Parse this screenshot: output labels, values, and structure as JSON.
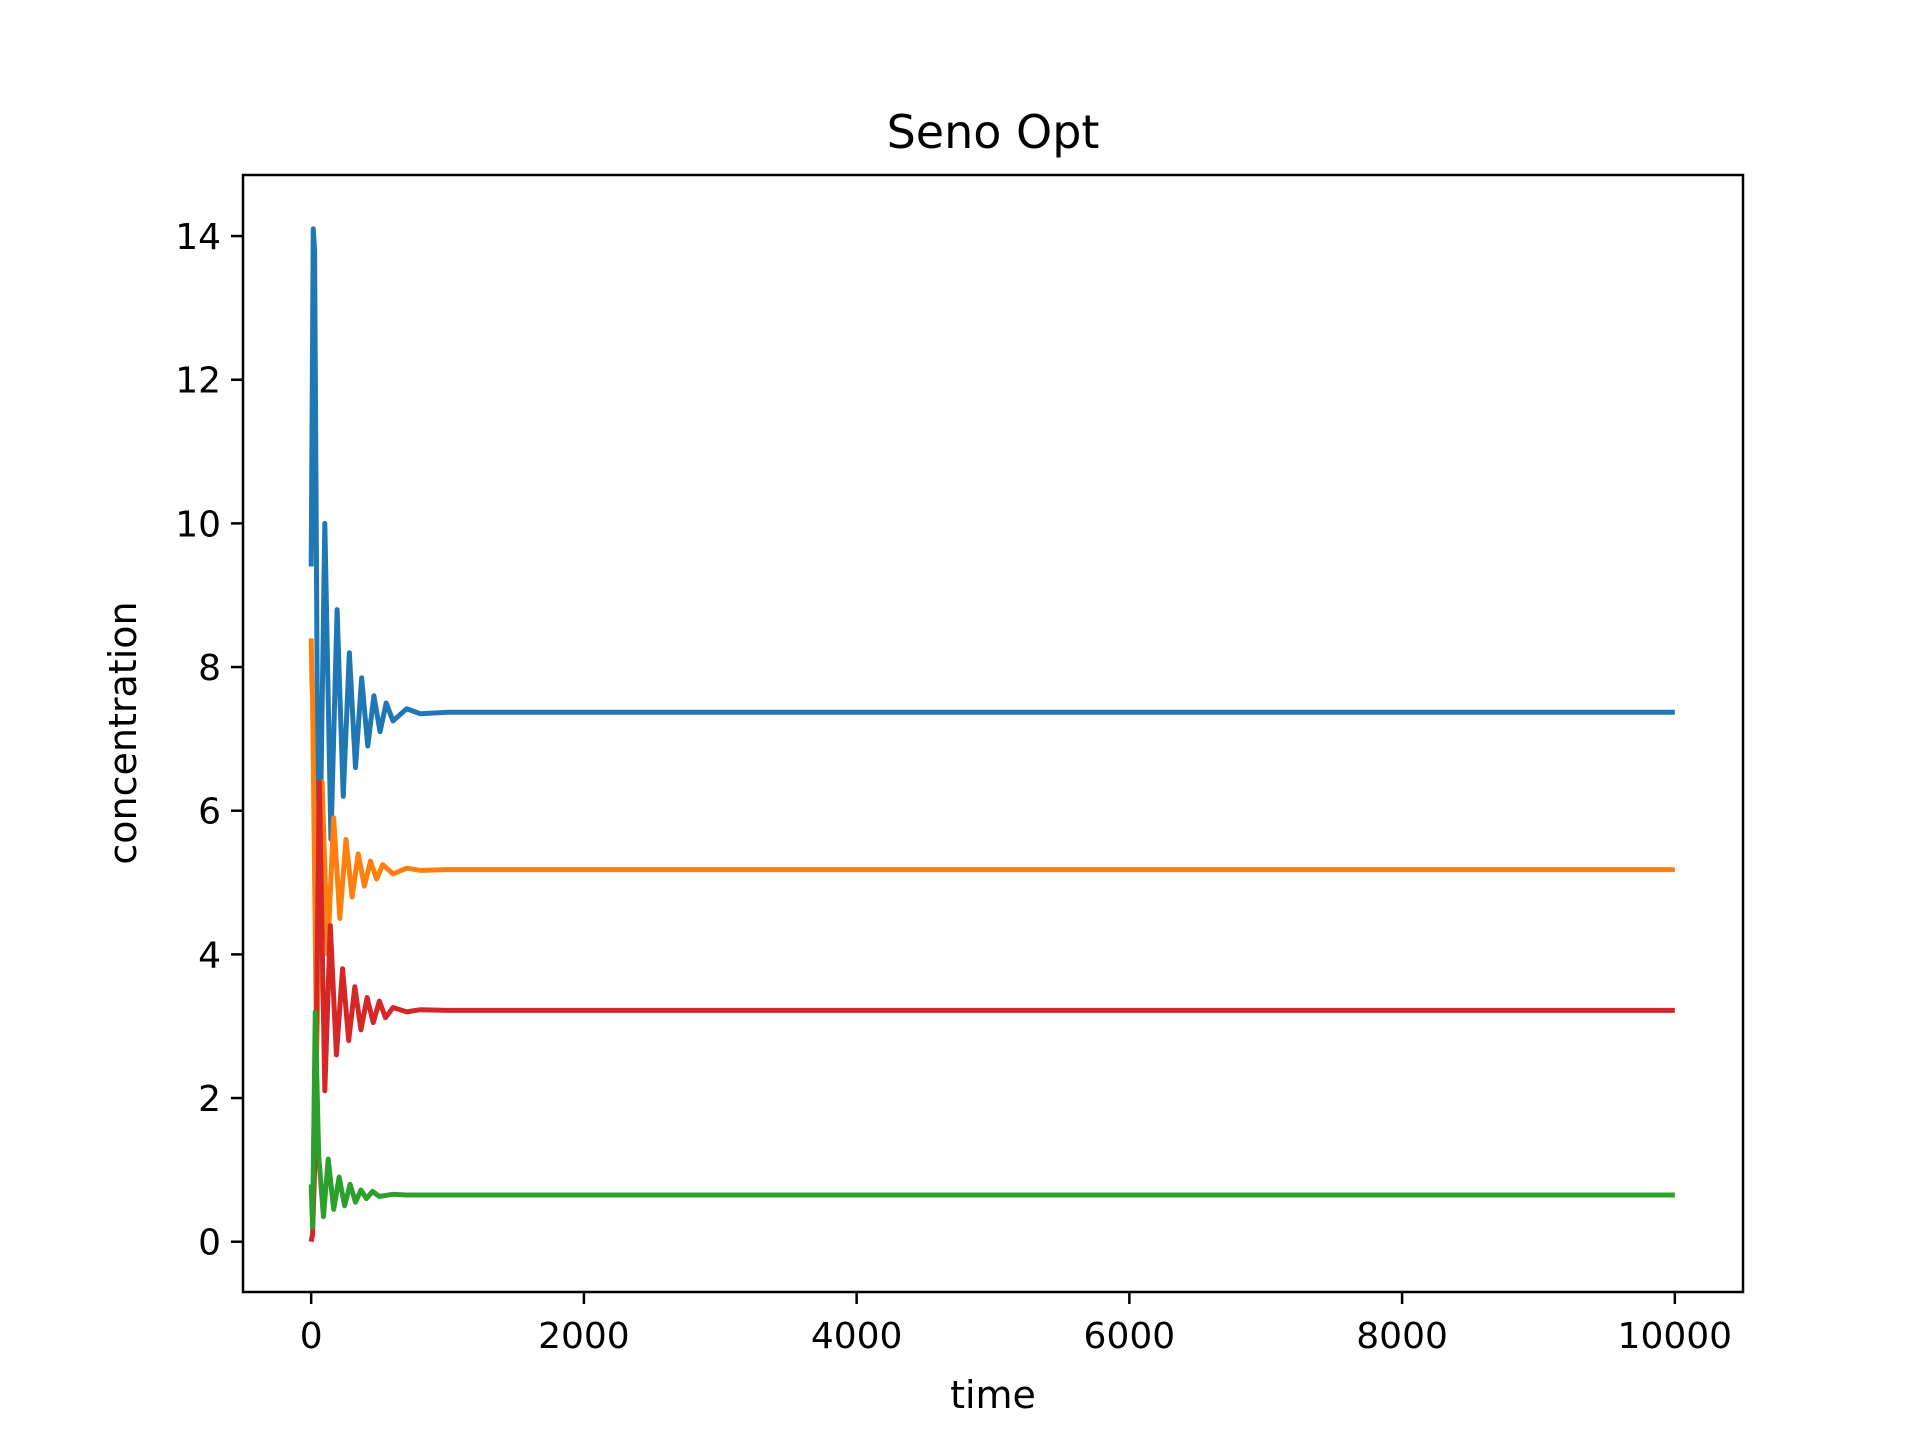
{
  "chart_data": {
    "type": "line",
    "title": "Seno Opt",
    "xlabel": "time",
    "ylabel": "concentration",
    "xlim": [
      -500,
      10500
    ],
    "ylim": [
      -0.7,
      14.85
    ],
    "x_ticks": [
      0,
      2000,
      4000,
      6000,
      8000,
      10000
    ],
    "y_ticks": [
      0,
      2,
      4,
      6,
      8,
      10,
      12,
      14
    ],
    "grid": false,
    "legend": "none",
    "series": [
      {
        "color": "#1f77b4",
        "initial": 9.4,
        "peak_time": 15,
        "peak": 14.1,
        "steady_state": 7.37,
        "x": [
          0,
          15,
          25,
          55,
          100,
          145,
          190,
          235,
          280,
          325,
          370,
          415,
          460,
          505,
          550,
          600,
          700,
          800,
          1000,
          10000
        ],
        "y": [
          9.4,
          14.1,
          13.8,
          4.2,
          10.0,
          5.6,
          8.8,
          6.2,
          8.2,
          6.6,
          7.85,
          6.9,
          7.6,
          7.1,
          7.5,
          7.25,
          7.42,
          7.35,
          7.37,
          7.37
        ]
      },
      {
        "color": "#ff7f0e",
        "initial": 8.4,
        "steady_state": 5.18,
        "x": [
          0,
          5,
          10,
          40,
          80,
          120,
          165,
          210,
          255,
          300,
          345,
          390,
          435,
          480,
          525,
          600,
          700,
          800,
          1000,
          10000
        ],
        "y": [
          8.4,
          7.8,
          7.6,
          2.6,
          6.4,
          4.0,
          5.9,
          4.5,
          5.6,
          4.8,
          5.4,
          4.95,
          5.3,
          5.05,
          5.25,
          5.12,
          5.2,
          5.17,
          5.18,
          5.18
        ]
      },
      {
        "color": "#d62728",
        "initial": 0.0,
        "steady_state": 3.22,
        "x": [
          0,
          10,
          25,
          60,
          100,
          140,
          185,
          230,
          275,
          320,
          365,
          410,
          455,
          500,
          545,
          600,
          700,
          800,
          1000,
          10000
        ],
        "y": [
          0.0,
          0.1,
          1.0,
          6.4,
          2.1,
          4.4,
          2.6,
          3.8,
          2.8,
          3.55,
          2.95,
          3.4,
          3.05,
          3.35,
          3.12,
          3.26,
          3.2,
          3.23,
          3.22,
          3.22
        ]
      },
      {
        "color": "#2ca02c",
        "initial": 0.8,
        "steady_state": 0.65,
        "x": [
          0,
          10,
          30,
          55,
          90,
          125,
          165,
          205,
          245,
          285,
          325,
          365,
          405,
          450,
          500,
          600,
          700,
          1000,
          10000
        ],
        "y": [
          0.8,
          0.2,
          3.2,
          1.2,
          0.35,
          1.15,
          0.45,
          0.9,
          0.5,
          0.8,
          0.55,
          0.72,
          0.6,
          0.7,
          0.63,
          0.66,
          0.65,
          0.65,
          0.65
        ]
      }
    ]
  }
}
